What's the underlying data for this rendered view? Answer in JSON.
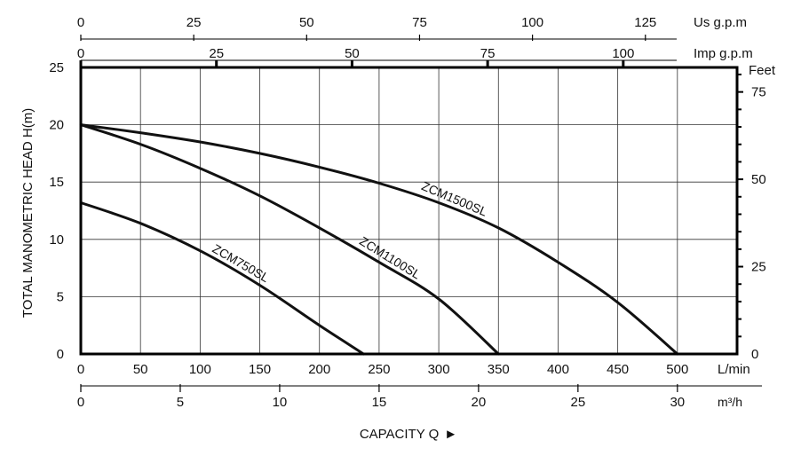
{
  "chart_data": {
    "type": "line",
    "ylabel": "TOTAL  MANOMETRIC HEAD  H(m)",
    "xlabel": "CAPACITY  Q",
    "xlabel_arrow": "►",
    "x_lmin": {
      "unit": "L/min",
      "ticks": [
        0,
        50,
        100,
        150,
        200,
        250,
        300,
        350,
        400,
        450,
        500
      ],
      "range": [
        0,
        550
      ]
    },
    "x_m3h": {
      "unit": "m³/h",
      "ticks": [
        0,
        5,
        10,
        15,
        20,
        25,
        30
      ]
    },
    "x_usgpm": {
      "unit": "Us g.p.m",
      "ticks": [
        0,
        25,
        50,
        75,
        100,
        125
      ]
    },
    "x_impgpm": {
      "unit": "Imp g.p.m",
      "ticks": [
        0,
        25,
        50,
        75,
        100
      ]
    },
    "y_m": {
      "unit": "H(m)",
      "ticks": [
        0,
        5,
        10,
        15,
        20,
        25
      ],
      "range": [
        0,
        25
      ]
    },
    "y_feet": {
      "unit": "Feet",
      "ticks": [
        0,
        25,
        50,
        75
      ]
    },
    "grid": true,
    "series": [
      {
        "name": "ZCM750SL",
        "x": [
          0,
          50,
          100,
          150,
          200,
          237
        ],
        "y": [
          13.2,
          11.4,
          9.0,
          6.0,
          2.5,
          0
        ]
      },
      {
        "name": "ZCM1100SL",
        "x": [
          0,
          50,
          100,
          150,
          200,
          250,
          300,
          350
        ],
        "y": [
          20,
          18.3,
          16.2,
          13.8,
          11.0,
          8.0,
          4.8,
          0
        ]
      },
      {
        "name": "ZCM1500SL",
        "x": [
          0,
          50,
          100,
          150,
          200,
          250,
          300,
          350,
          400,
          450,
          500
        ],
        "y": [
          20,
          19.3,
          18.5,
          17.5,
          16.3,
          14.9,
          13.2,
          11.0,
          8.0,
          4.5,
          0
        ]
      }
    ]
  }
}
